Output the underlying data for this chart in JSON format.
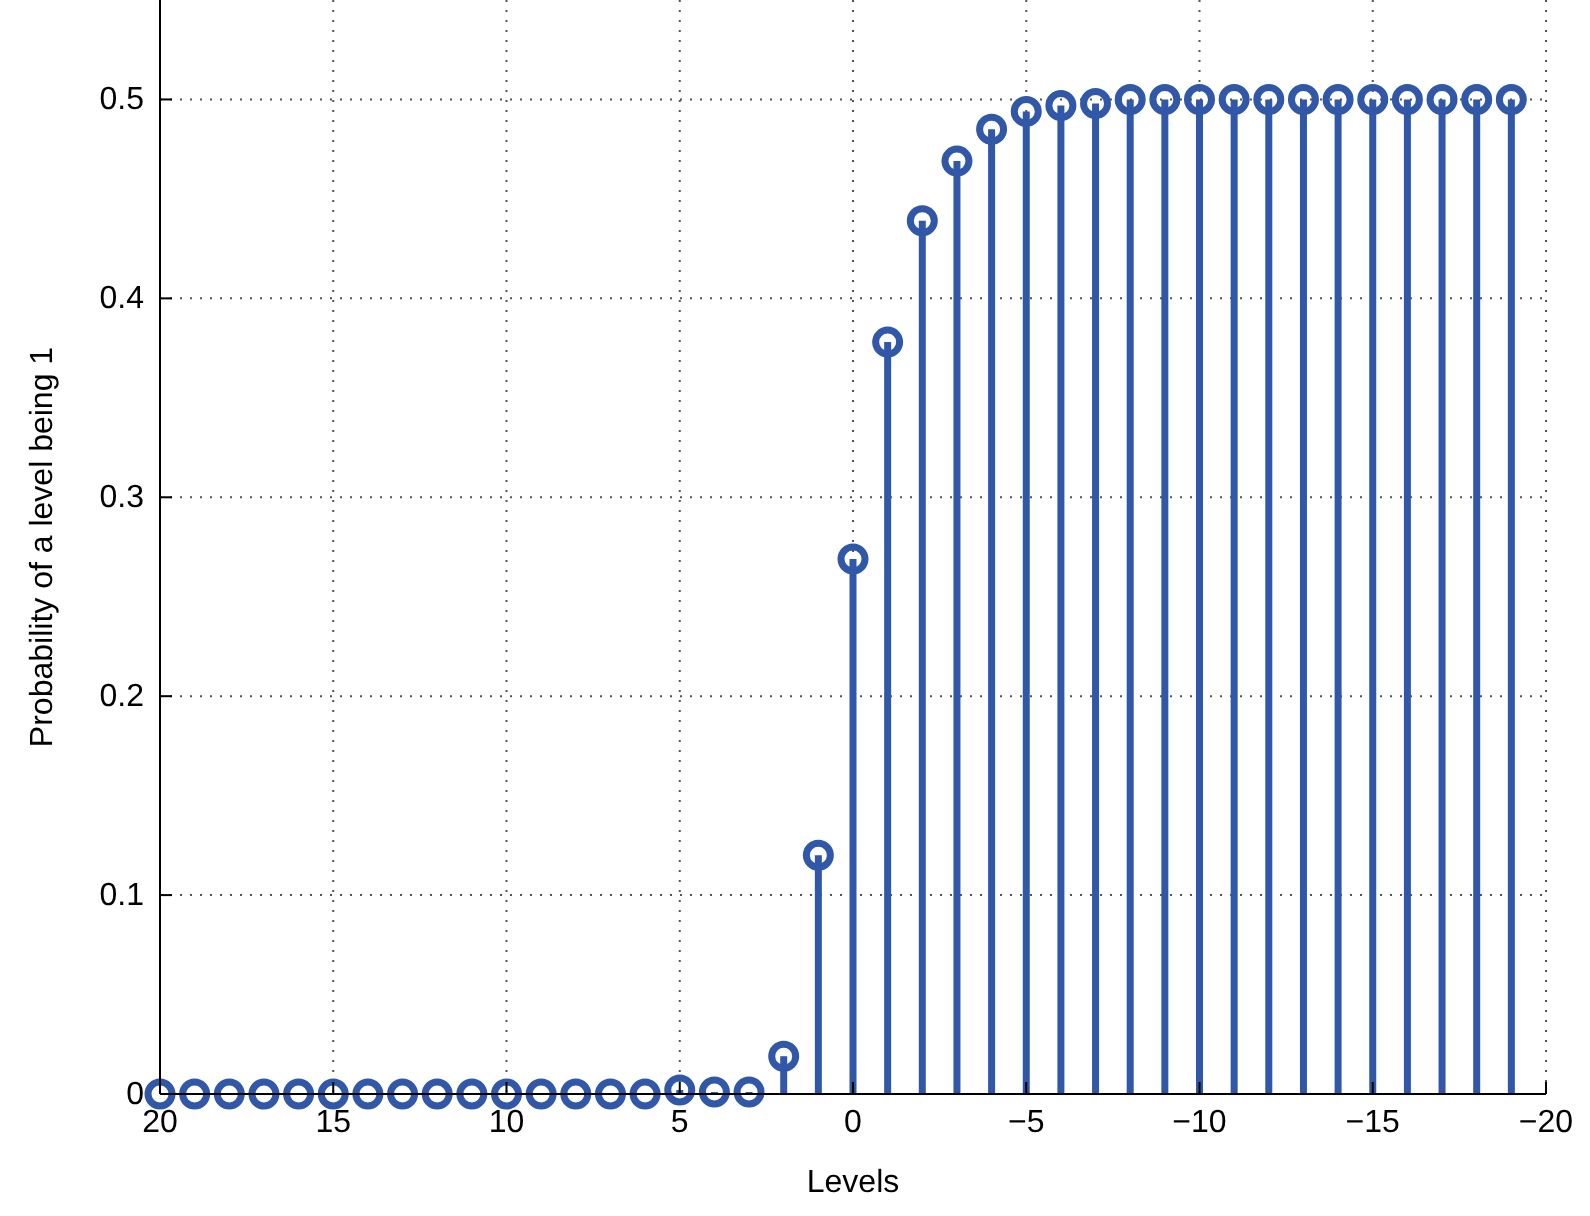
{
  "chart_data": {
    "type": "lollipop",
    "xlabel": "Levels",
    "ylabel": "Probability of a level being 1",
    "x": [
      20,
      19,
      18,
      17,
      16,
      15,
      14,
      13,
      12,
      11,
      10,
      9,
      8,
      7,
      6,
      5,
      4,
      3,
      2,
      1,
      0,
      -1,
      -2,
      -3,
      -4,
      -5,
      -6,
      -7,
      -8,
      -9,
      -10,
      -11,
      -12,
      -13,
      -14,
      -15,
      -16,
      -17,
      -18,
      -19
    ],
    "series": [
      {
        "color": "#3057a8",
        "values": [
          0,
          0,
          0,
          0,
          0,
          0,
          0,
          0,
          0,
          0,
          0,
          0,
          0,
          0,
          0,
          0.002,
          0.001,
          0.001,
          0.019,
          0.12,
          0.269,
          0.378,
          0.439,
          0.469,
          0.485,
          0.494,
          0.497,
          0.498,
          0.5,
          0.5,
          0.5,
          0.5,
          0.5,
          0.5,
          0.5,
          0.5,
          0.5,
          0.5,
          0.5,
          0.5
        ]
      }
    ],
    "xlim": [
      20,
      -20
    ],
    "xticks": [
      20,
      15,
      10,
      5,
      0,
      {
        "value": -5,
        "label": "−5"
      },
      {
        "value": -10,
        "label": "−10"
      },
      {
        "value": -15,
        "label": "−15"
      },
      {
        "value": -20,
        "label": "−20"
      }
    ],
    "ylim": [
      0,
      0.55
    ],
    "yticks": [
      0,
      0.1,
      0.2,
      0.3,
      0.4,
      0.5
    ],
    "grid": true,
    "marker": "circle"
  }
}
